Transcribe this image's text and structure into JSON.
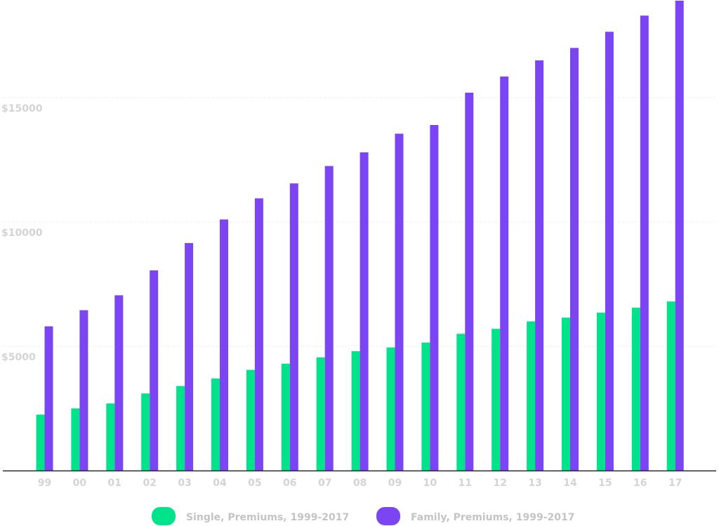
{
  "chart_data": {
    "type": "bar",
    "categories": [
      "99",
      "00",
      "01",
      "02",
      "03",
      "04",
      "05",
      "06",
      "07",
      "08",
      "09",
      "10",
      "11",
      "12",
      "13",
      "14",
      "15",
      "16",
      "17"
    ],
    "series": [
      {
        "name": "Single, Premiums, 1999-2017",
        "color": "#00e38a",
        "values": [
          2250,
          2500,
          2700,
          3100,
          3400,
          3700,
          4050,
          4300,
          4550,
          4800,
          4950,
          5150,
          5500,
          5700,
          6000,
          6150,
          6350,
          6550,
          6800
        ]
      },
      {
        "name": "Family, Premiums, 1999-2017",
        "color": "#7b45f3",
        "values": [
          5800,
          6450,
          7050,
          8050,
          9150,
          10100,
          10950,
          11550,
          12250,
          12800,
          13550,
          13900,
          15200,
          15850,
          16500,
          17000,
          17650,
          18300,
          18900
        ]
      }
    ],
    "y_ticks": [
      {
        "value": 5000,
        "label": "$5000"
      },
      {
        "value": 10000,
        "label": "$10000"
      },
      {
        "value": 15000,
        "label": "$15000"
      }
    ],
    "ylim": [
      0,
      18900
    ],
    "grid": true,
    "legend_position": "bottom"
  }
}
